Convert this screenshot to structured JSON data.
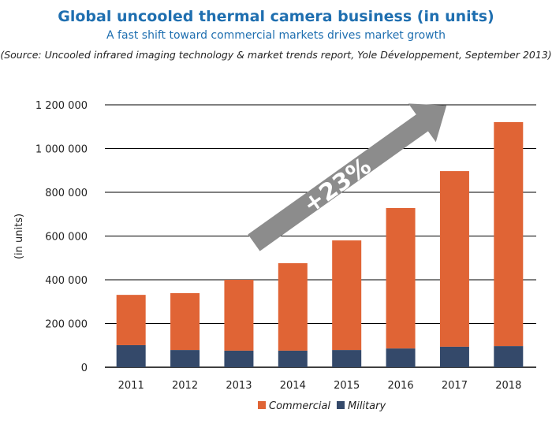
{
  "chart_data": {
    "type": "bar",
    "stacked": true,
    "title": "Global uncooled thermal camera business (in units)",
    "subtitle": "A fast shift toward commercial markets drives market growth",
    "source": "(Source: Uncooled infrared imaging technology & market trends report, Yole Développement, September 2013)",
    "xlabel": "",
    "ylabel": "(in units)",
    "ylim": [
      0,
      1200000
    ],
    "yticks": [
      0,
      200000,
      400000,
      600000,
      800000,
      1000000,
      1200000
    ],
    "ytick_labels": [
      "0",
      "200 000",
      "400 000",
      "600 000",
      "800 000",
      "1 000 000",
      "1 200 000"
    ],
    "grid": true,
    "legend": "bottom",
    "categories": [
      "2011",
      "2012",
      "2013",
      "2014",
      "2015",
      "2016",
      "2017",
      "2018"
    ],
    "series": [
      {
        "name": "Military",
        "color": "#34496a",
        "values": [
          101000,
          79000,
          76000,
          76000,
          79000,
          86000,
          94000,
          97000
        ]
      },
      {
        "name": "Commercial",
        "color": "#e06435",
        "values": [
          230000,
          260000,
          324000,
          400000,
          501000,
          642000,
          803000,
          1024000
        ]
      }
    ],
    "annotation": {
      "text": "+23%",
      "color": "#8c8c8c"
    }
  }
}
